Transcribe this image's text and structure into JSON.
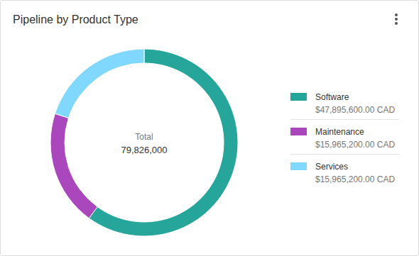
{
  "chart_data": {
    "type": "donut",
    "title": "Pipeline by Product Type",
    "categories": [
      "Software",
      "Maintenance",
      "Services"
    ],
    "values": [
      47895600,
      15965200,
      15965200
    ],
    "value_labels": [
      "$47,895,600.00 CAD",
      "$15,965,200.00 CAD",
      "$15,965,200.00 CAD"
    ],
    "colors": [
      "#26a69a",
      "#ab47bc",
      "#80d8ff"
    ],
    "total_label": "Total",
    "total": {
      "value": 79826000,
      "label": "79,826,000"
    },
    "legend": "right"
  }
}
